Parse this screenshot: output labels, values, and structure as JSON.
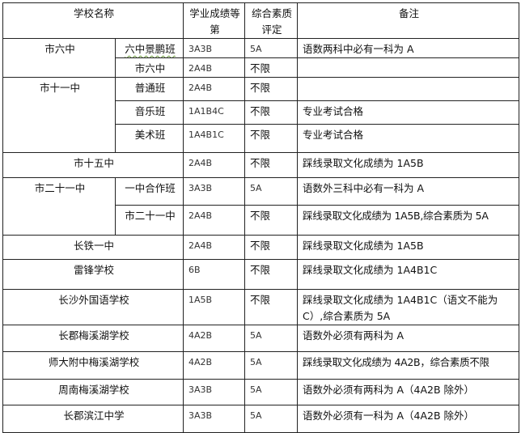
{
  "header": {
    "school": "学校名称",
    "grade": "学业成绩等第",
    "quality": "综合素质评定",
    "note": "备注"
  },
  "rows": [
    {
      "school": "市六中",
      "class": "六中景鹏班",
      "grade": "3A3B",
      "quality": "5A",
      "note": "语数两科中必有一科为 A"
    },
    {
      "class": "市六中",
      "grade": "2A4B",
      "quality": "不限",
      "note": ""
    },
    {
      "school": "市十一中",
      "class": "普通班",
      "grade": "2A4B",
      "quality": "不限",
      "note": ""
    },
    {
      "class": "音乐班",
      "grade": "1A1B4C",
      "quality": "不限",
      "note": "专业考试合格"
    },
    {
      "class": "美术班",
      "grade": "1A4B1C",
      "quality": "不限",
      "note": "专业考试合格"
    },
    {
      "school": "市十五中",
      "grade": "2A4B",
      "quality": "不限",
      "note": "踩线录取文化成绩为 1A5B"
    },
    {
      "school": "市二十一中",
      "class": "一中合作班",
      "grade": "3A3B",
      "quality": "5A",
      "note": "语数外三科中必有一科为 A"
    },
    {
      "class": "市二十一中",
      "grade": "2A4B",
      "quality": "不限",
      "note": "踩线录取文化成绩为 1A5B,综合素质为 5A"
    },
    {
      "school": "长铁一中",
      "grade": "2A4B",
      "quality": "不限",
      "note": "踩线录取文化成绩为 1A5B"
    },
    {
      "school": "雷锋学校",
      "grade": "6B",
      "quality": "不限",
      "note": "踩线录取文化成绩为 1A4B1C"
    },
    {
      "school": "长沙外国语学校",
      "grade": "1A5B",
      "quality": "不限",
      "note": "踩线录取文化成绩为 1A4B1C（语文不能为 C）,综合素质为 5A"
    },
    {
      "school": "长郡梅溪湖学校",
      "grade": "4A2B",
      "quality": "5A",
      "note": "语数外必须有两科为 A"
    },
    {
      "school": "师大附中梅溪湖学校",
      "grade": "4A2B",
      "quality": "5A",
      "note": "踩线录取文化成绩为 4A2B，综合素质不限"
    },
    {
      "school": "周南梅溪湖学校",
      "grade": "3A3B",
      "quality": "5A",
      "note": "语数外必须有两科为 A（4A2B 除外）"
    },
    {
      "school": "长郡滨江中学",
      "grade": "3A3B",
      "quality": "5A",
      "note": "语数外必须有一科为 A（4A2B 除外）"
    }
  ]
}
